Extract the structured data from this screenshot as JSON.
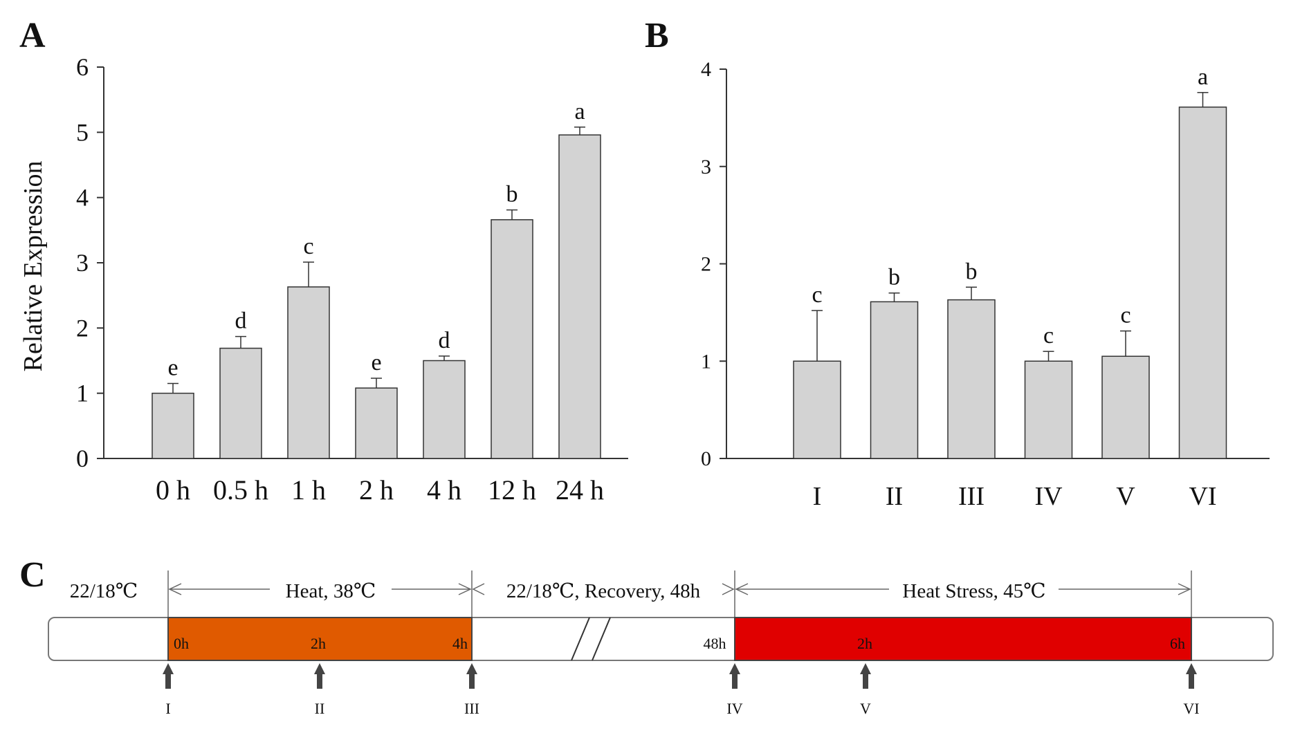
{
  "chart_data": [
    {
      "panel": "A",
      "type": "bar",
      "ylabel": "Relative Expression",
      "xlabel": "",
      "ylim": [
        0,
        6
      ],
      "yticks": [
        "0",
        "1",
        "2",
        "3",
        "4",
        "5",
        "6"
      ],
      "categories": [
        "0 h",
        "0.5 h",
        "1 h",
        "2 h",
        "4 h",
        "12 h",
        "24 h"
      ],
      "values": [
        1.0,
        1.69,
        2.63,
        1.08,
        1.5,
        3.66,
        4.96
      ],
      "errors": [
        0.15,
        0.18,
        0.38,
        0.15,
        0.07,
        0.15,
        0.12
      ],
      "letters": [
        "e",
        "d",
        "c",
        "e",
        "d",
        "b",
        "a"
      ]
    },
    {
      "panel": "B",
      "type": "bar",
      "ylabel": "",
      "xlabel": "",
      "ylim": [
        0,
        4
      ],
      "yticks": [
        "0",
        "1",
        "2",
        "3",
        "4"
      ],
      "categories": [
        "I",
        "II",
        "III",
        "IV",
        "V",
        "VI"
      ],
      "values": [
        1.0,
        1.61,
        1.63,
        1.0,
        1.05,
        3.61
      ],
      "errors": [
        0.52,
        0.09,
        0.13,
        0.1,
        0.26,
        0.15
      ],
      "letters": [
        "c",
        "b",
        "b",
        "c",
        "c",
        "a"
      ]
    }
  ],
  "timeline": {
    "panel": "C",
    "ambient_label": "22/18℃",
    "heat_label": "Heat, 38℃",
    "recovery_label": "22/18℃, Recovery, 48h",
    "stress_label": "Heat Stress, 45℃",
    "times": [
      "0h",
      "2h",
      "4h",
      "48h",
      "2h",
      "6h"
    ],
    "stages": [
      "I",
      "II",
      "III",
      "IV",
      "V",
      "VI"
    ],
    "colors": {
      "heat": "#e05a00",
      "stress": "#e00000",
      "bar": "#d3d3d3"
    }
  }
}
